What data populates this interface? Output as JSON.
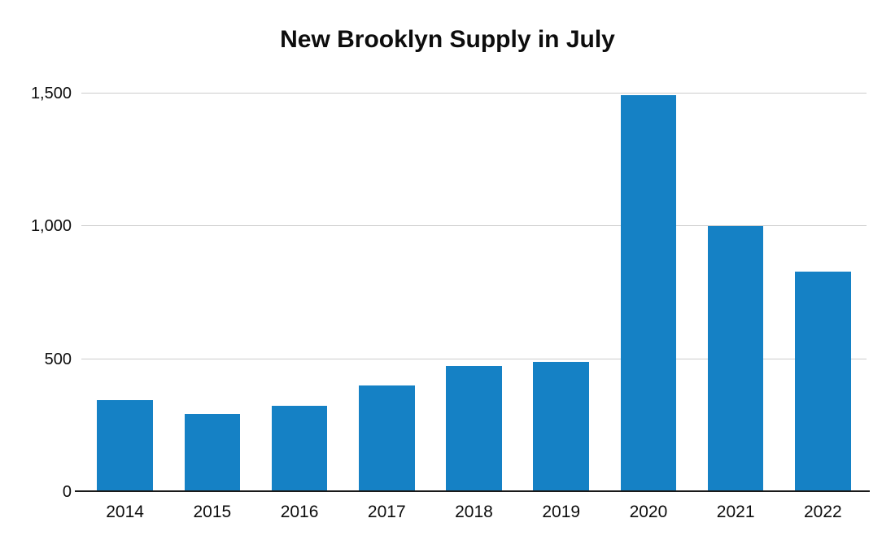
{
  "chart_data": {
    "type": "bar",
    "title": "New Brooklyn Supply in July",
    "categories": [
      "2014",
      "2015",
      "2016",
      "2017",
      "2018",
      "2019",
      "2020",
      "2021",
      "2022"
    ],
    "values": [
      345,
      295,
      325,
      400,
      475,
      490,
      1495,
      1000,
      830
    ],
    "xlabel": "",
    "ylabel": "",
    "ylim": [
      0,
      1500
    ],
    "yticks": [
      0,
      500,
      1000,
      1500
    ],
    "ytick_labels": [
      "0",
      "500",
      "1,000",
      "1,500"
    ],
    "bar_color": "#1581c5",
    "grid": "horizontal-only",
    "legend": "none",
    "background": "#ffffff"
  }
}
